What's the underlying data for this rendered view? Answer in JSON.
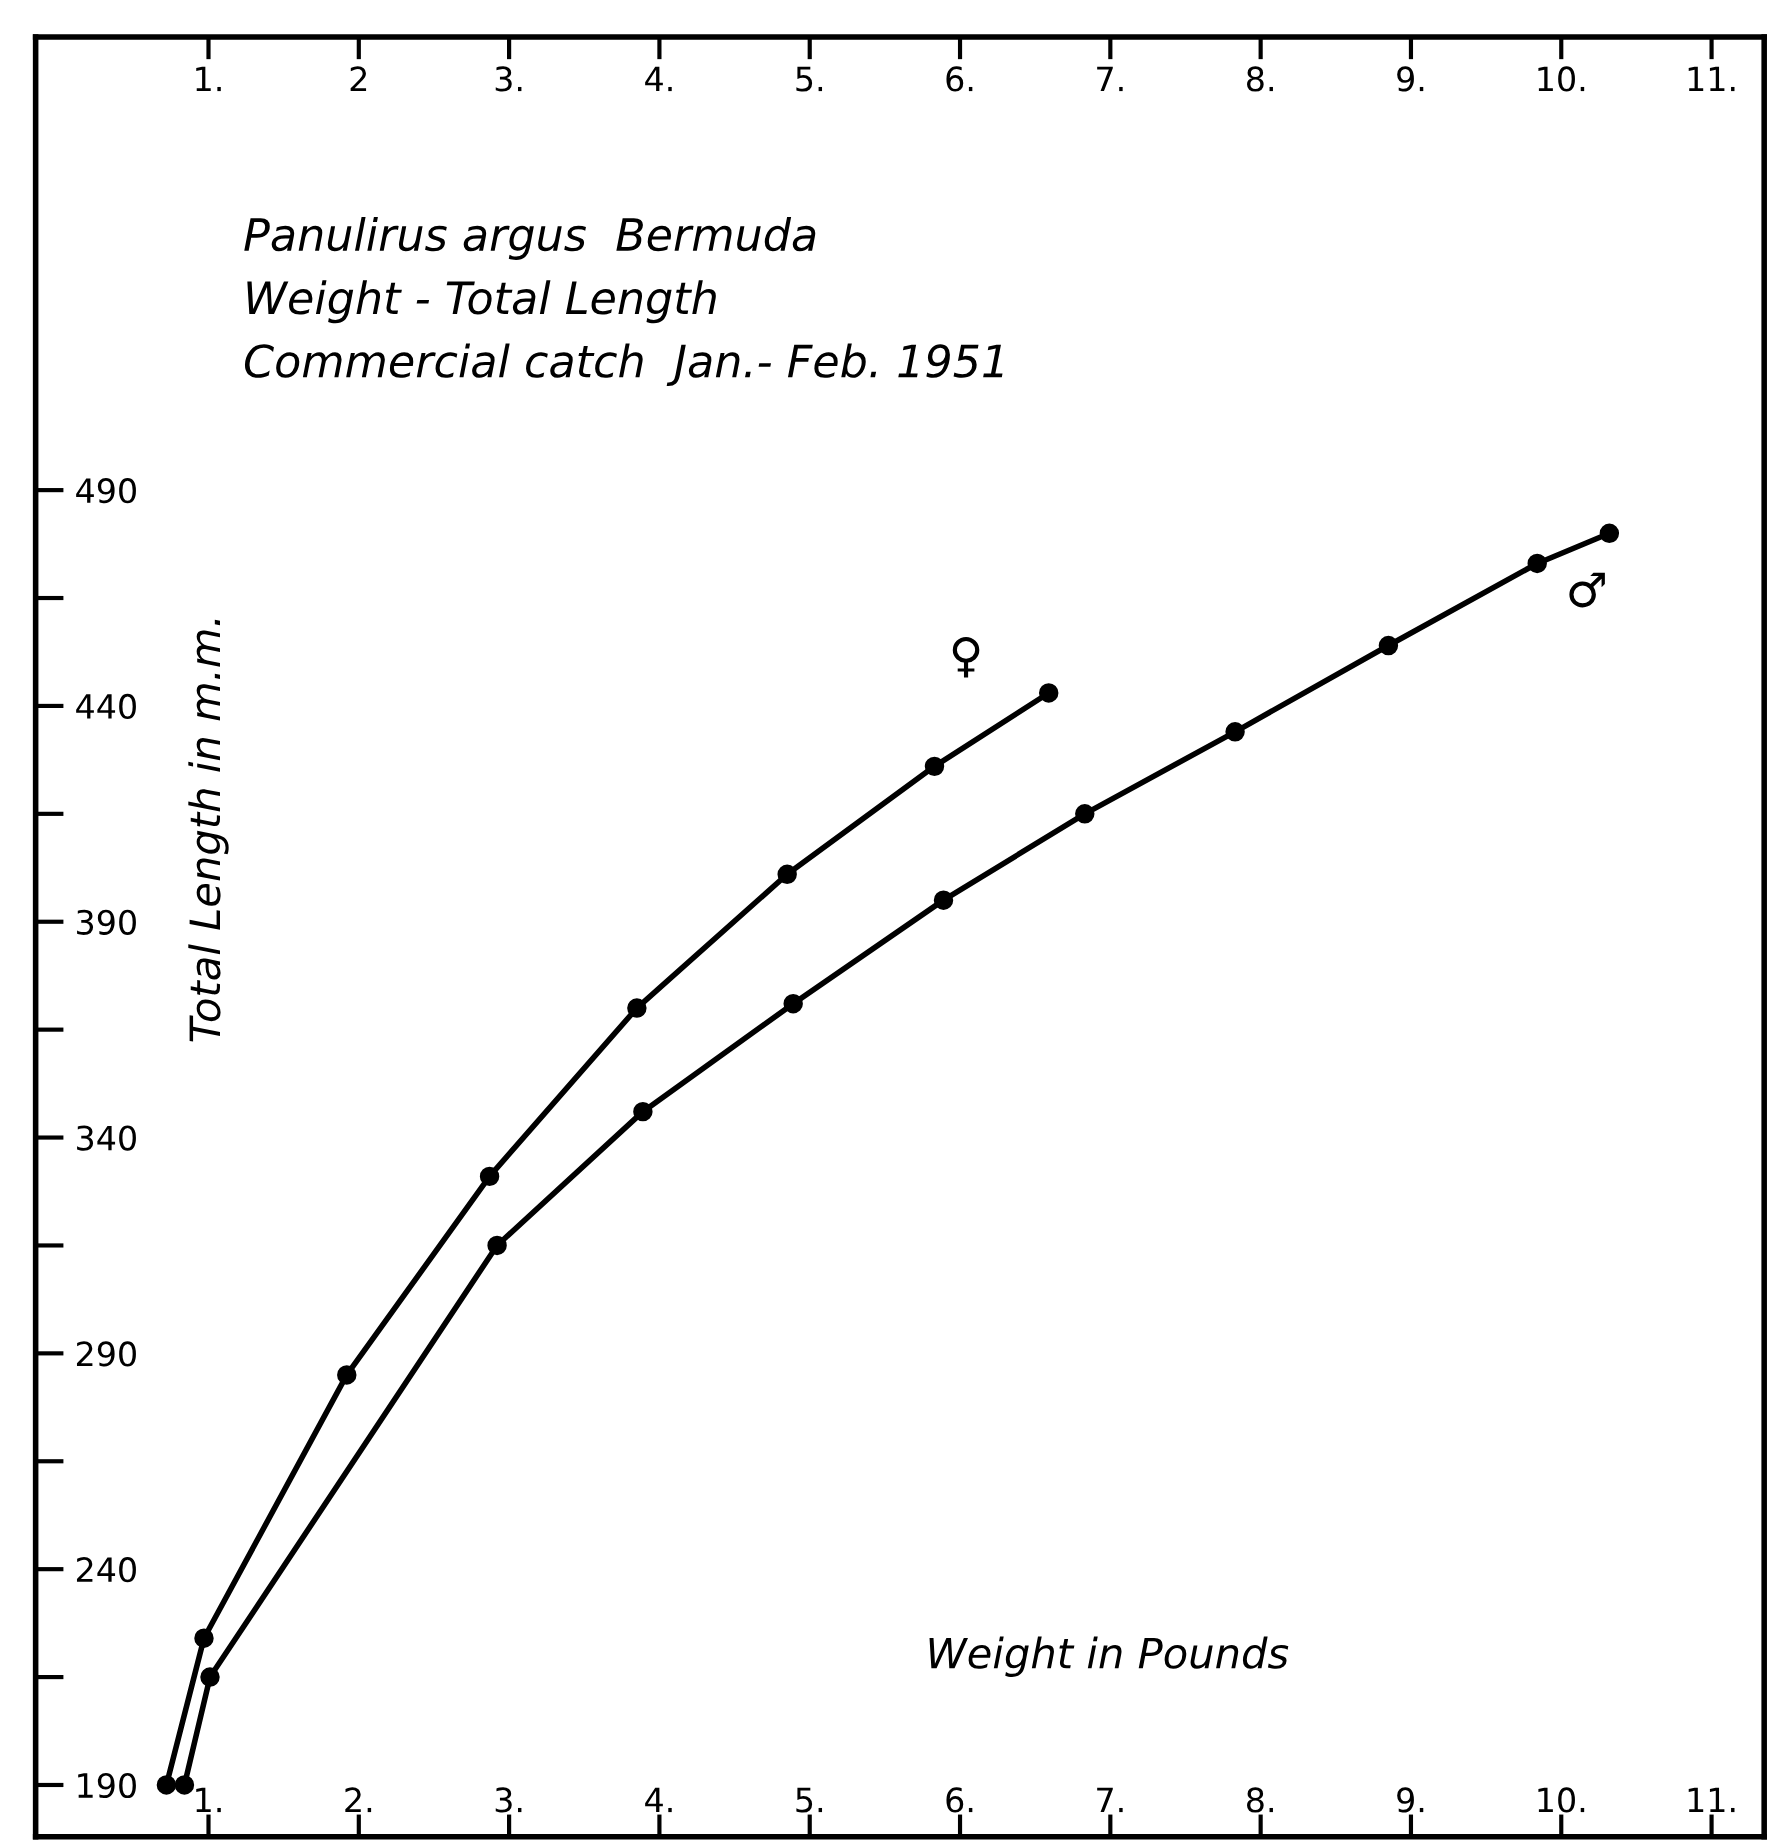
{
  "chart_data": {
    "type": "line",
    "title": "Panulirus argus  Bermuda\nWeight - Total Length\nCommercial catch  Jan.- Feb. 1951",
    "xlabel": "Weight in Pounds",
    "ylabel": "Total Length in m.m.",
    "series": [
      {
        "name": "♀",
        "color": "#000000",
        "x": [
          0.72,
          0.97,
          1.92,
          2.87,
          3.85,
          4.85,
          5.83,
          6.59
        ],
        "values": [
          190,
          224,
          285,
          331,
          370,
          401,
          426,
          443
        ]
      },
      {
        "name": "♂",
        "color": "#000000",
        "x": [
          0.84,
          1.01,
          2.92,
          3.89,
          4.89,
          5.89,
          6.83,
          7.83,
          8.85,
          9.84,
          10.32
        ],
        "values": [
          190,
          215,
          315,
          346,
          371,
          395,
          415,
          434,
          454,
          473,
          480
        ]
      }
    ],
    "xlim": [
      -0.15,
      11.35
    ],
    "ylim": [
      178,
      595
    ],
    "xticks": [
      {
        "value": 1,
        "label": "1."
      },
      {
        "value": 2,
        "label": "2."
      },
      {
        "value": 3,
        "label": "3."
      },
      {
        "value": 4,
        "label": "4."
      },
      {
        "value": 5,
        "label": "5."
      },
      {
        "value": 6,
        "label": "6."
      },
      {
        "value": 7,
        "label": "7."
      },
      {
        "value": 8,
        "label": "8."
      },
      {
        "value": 9,
        "label": "9."
      },
      {
        "value": 10,
        "label": "10."
      },
      {
        "value": 11,
        "label": "11."
      }
    ],
    "x2lim": [
      -0.15,
      11.35
    ],
    "x2ticks": [
      {
        "value": 1,
        "label": "1."
      },
      2,
      {
        "value": 3,
        "label": "3."
      },
      {
        "value": 4,
        "label": "4."
      },
      {
        "value": 5,
        "label": "5."
      },
      {
        "value": 6,
        "label": "6."
      },
      {
        "value": 7,
        "label": "7."
      },
      {
        "value": 8,
        "label": "8."
      },
      {
        "value": 9,
        "label": "9."
      },
      {
        "value": 10,
        "label": "10."
      },
      {
        "value": 11,
        "label": "11."
      }
    ],
    "yticks": [
      190,
      {
        "value": 215,
        "label": null
      },
      240,
      {
        "value": 265,
        "label": null
      },
      290,
      {
        "value": 315,
        "label": null
      },
      340,
      {
        "value": 365,
        "label": null
      },
      390,
      {
        "value": 415,
        "label": null
      },
      440,
      {
        "value": 465,
        "label": null
      },
      490
    ],
    "marker": "circle",
    "line_style": "solid",
    "grid": false,
    "legend": false
  }
}
